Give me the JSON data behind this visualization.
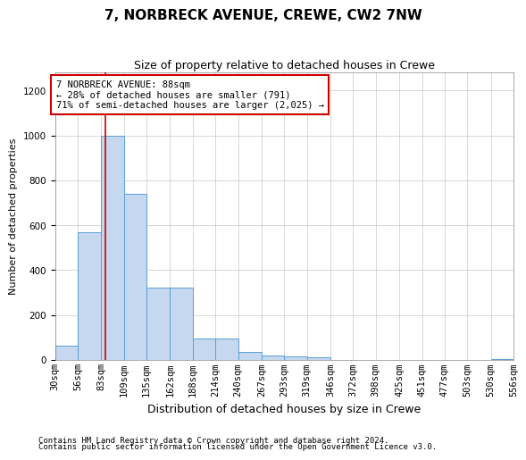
{
  "title": "7, NORBRECK AVENUE, CREWE, CW2 7NW",
  "subtitle": "Size of property relative to detached houses in Crewe",
  "xlabel": "Distribution of detached houses by size in Crewe",
  "ylabel": "Number of detached properties",
  "footnote1": "Contains HM Land Registry data © Crown copyright and database right 2024.",
  "footnote2": "Contains public sector information licensed under the Open Government Licence v3.0.",
  "bin_edges": [
    30,
    56,
    83,
    109,
    135,
    162,
    188,
    214,
    240,
    267,
    293,
    319,
    346,
    372,
    398,
    425,
    451,
    477,
    503,
    530,
    556
  ],
  "bar_heights": [
    65,
    570,
    1000,
    740,
    320,
    320,
    95,
    95,
    35,
    20,
    15,
    10,
    0,
    0,
    0,
    0,
    0,
    0,
    0,
    5
  ],
  "bar_color": "#c5d8ef",
  "bar_edge_color": "#5a9fd4",
  "property_size": 88,
  "annotation_text": "7 NORBRECK AVENUE: 88sqm\n← 28% of detached houses are smaller (791)\n71% of semi-detached houses are larger (2,025) →",
  "annotation_box_color": "white",
  "annotation_box_edge_color": "#cc0000",
  "vline_color": "#cc0000",
  "ylim": [
    0,
    1280
  ],
  "yticks": [
    0,
    200,
    400,
    600,
    800,
    1000,
    1200
  ],
  "background_color": "white",
  "grid_color": "#c8c8c8",
  "title_fontsize": 11,
  "subtitle_fontsize": 9,
  "ylabel_fontsize": 8,
  "xlabel_fontsize": 9,
  "tick_fontsize": 7.5,
  "annotation_fontsize": 7.5,
  "footnote_fontsize": 6.5
}
